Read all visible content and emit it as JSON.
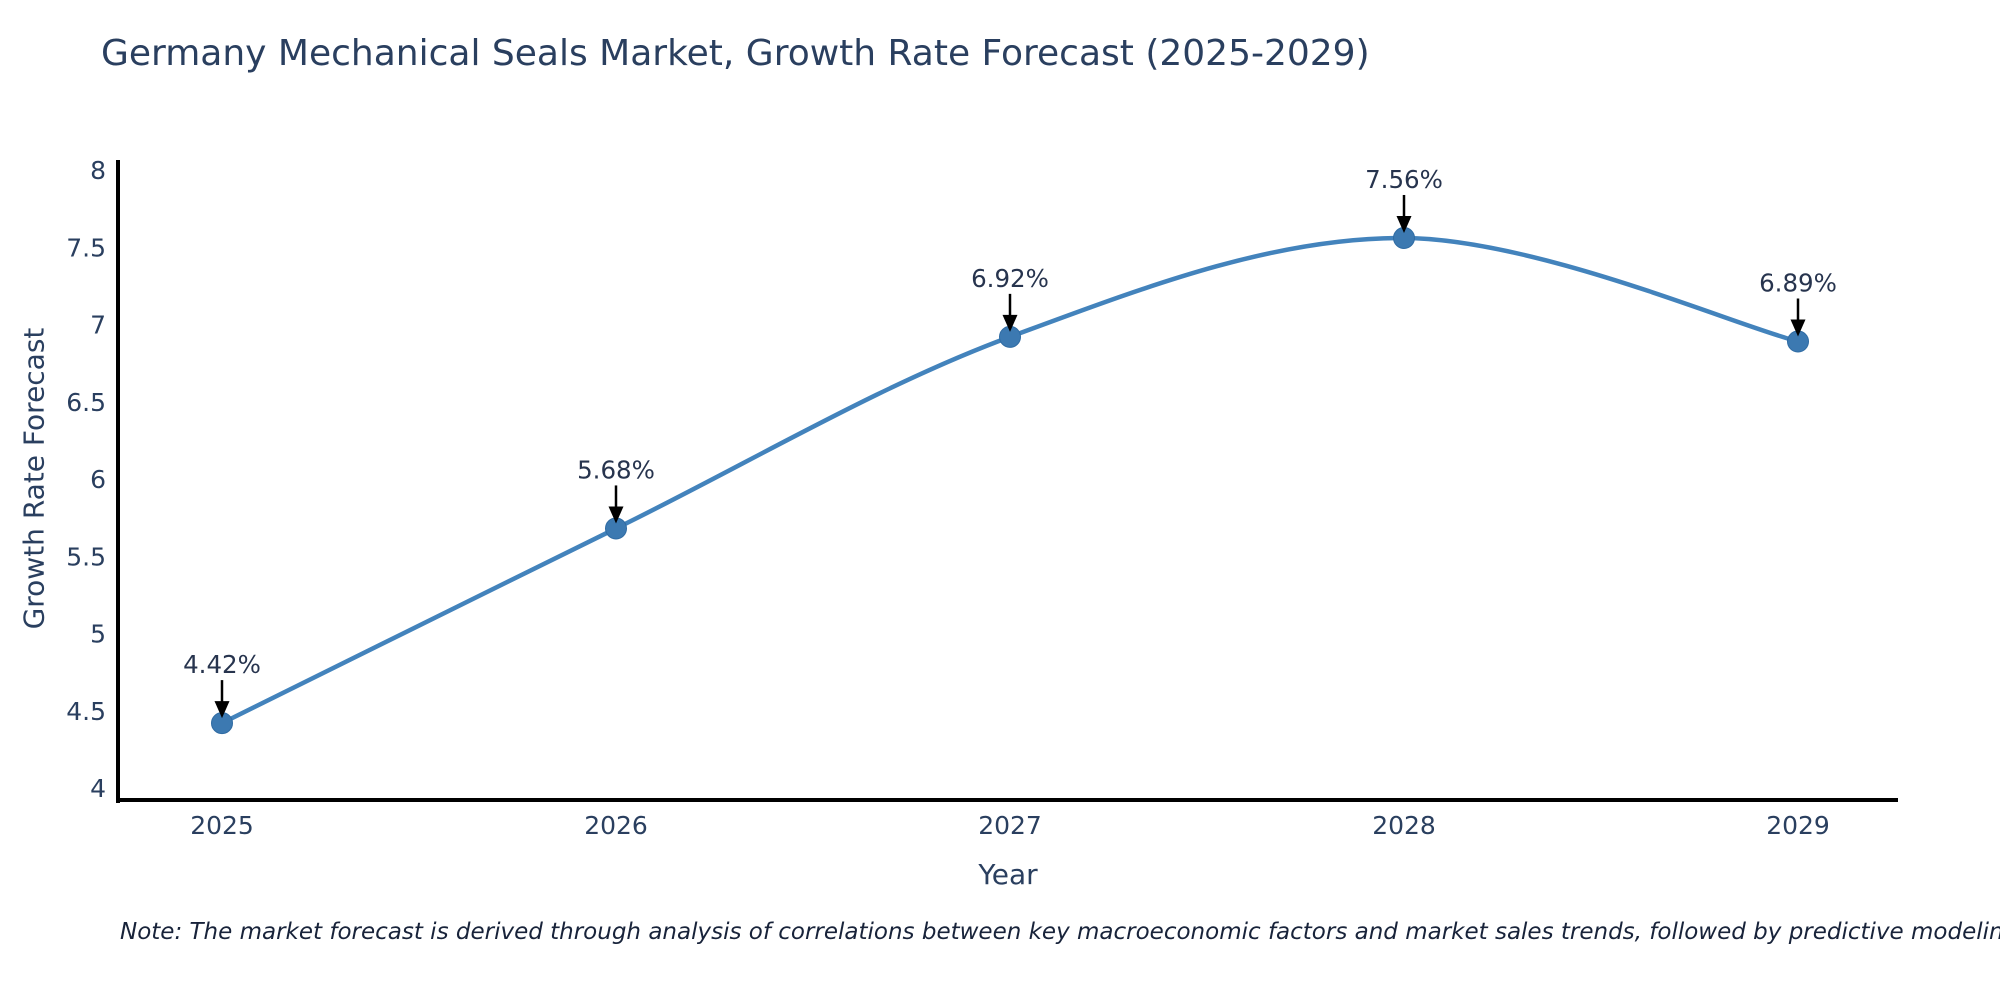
{
  "note": "Note: The market forecast is derived through analysis of correlations between key macroeconomic factors and market sales trends, followed by predictive modeling to project future sales",
  "chart_data": {
    "type": "line",
    "title": "Germany Mechanical Seals Market, Growth Rate Forecast (2025-2029)",
    "categories": [
      "2025",
      "2026",
      "2027",
      "2028",
      "2029"
    ],
    "series": [
      {
        "name": "Growth Rate Forecast",
        "values": [
          4.42,
          5.68,
          6.92,
          7.56,
          6.89
        ]
      }
    ],
    "point_labels": [
      "4.42%",
      "5.68%",
      "6.92%",
      "7.56%",
      "6.89%"
    ],
    "xlabel": "Year",
    "ylabel": "Growth Rate Forecast",
    "ylim": [
      4,
      8
    ],
    "yticks": [
      4,
      4.5,
      5,
      5.5,
      6,
      6.5,
      7,
      7.5,
      8
    ],
    "line_shape": "spline",
    "grid": false,
    "legend": "none",
    "colors": {
      "line": "#4383bc",
      "marker_fill": "#3c79b1",
      "marker_edge": "#2f6ba3",
      "axis_line": "#000000",
      "tick_text": "#2a3f5f",
      "title_text": "#2a3f5f",
      "annotation_text": "#27344e",
      "arrow": "#000000"
    }
  }
}
